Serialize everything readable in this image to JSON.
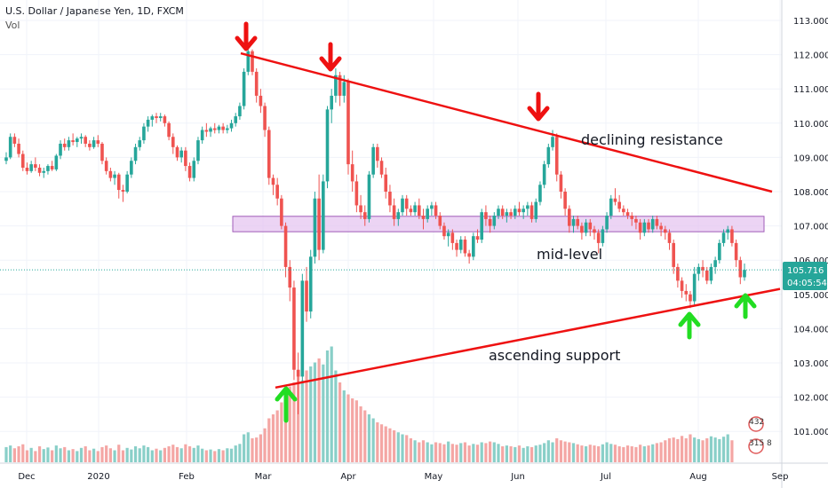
{
  "header": {
    "symbol": "U.S. Dollar / Japanese Yen, 1D, FXCM",
    "indicator": "Vol"
  },
  "colors": {
    "up": "#26a69a",
    "down": "#ef5350",
    "vol_up": "#89cfc8",
    "vol_down": "#f4a6a4",
    "trend": "#ee1111",
    "zone_fill": "#e6c6f0",
    "zone_stroke": "#a05cb8",
    "arrow_red": "#ee1111",
    "arrow_green": "#22dd22",
    "price_tag": "#26a69a",
    "grid": "#f0f3fa",
    "axis": "#d1d4dc"
  },
  "price_tag": {
    "value": "105.716",
    "countdown": "04:05:54"
  },
  "watermark": {
    "line1": "432",
    "line2": "315 8"
  },
  "annotations": {
    "resistance": "declining resistance",
    "midlevel": "mid-level",
    "support": "ascending support"
  },
  "chart_data": {
    "type": "candlestick",
    "y_ticks": [
      "101.000",
      "102.000",
      "103.000",
      "104.000",
      "105.000",
      "106.000",
      "107.000",
      "108.000",
      "109.000",
      "110.000",
      "111.000",
      "112.000",
      "113.000"
    ],
    "x_ticks": [
      "Dec",
      "2020",
      "Feb",
      "Mar",
      "Apr",
      "May",
      "Jun",
      "Jul",
      "Aug",
      "Sep"
    ],
    "ylim": [
      100.05,
      113.4
    ],
    "last_price": 105.716,
    "mid_zone": [
      106.83,
      107.28
    ],
    "resistance_line": {
      "from": {
        "date": "Feb 20",
        "price": 112.04
      },
      "to": {
        "date": "Sep 7",
        "price": 108.0
      }
    },
    "support_line": {
      "from": {
        "date": "Mar 9",
        "price": 102.28
      },
      "to": {
        "date": "Sep 3",
        "price": 105.16
      }
    },
    "candles": [
      [
        108.9,
        109.15,
        108.8,
        109.0
      ],
      [
        109.0,
        109.7,
        108.95,
        109.6
      ],
      [
        109.6,
        109.7,
        109.3,
        109.4
      ],
      [
        109.4,
        109.55,
        109.0,
        109.1
      ],
      [
        109.1,
        109.2,
        108.6,
        108.7
      ],
      [
        108.7,
        108.85,
        108.5,
        108.6
      ],
      [
        108.6,
        108.9,
        108.55,
        108.8
      ],
      [
        108.8,
        109.0,
        108.6,
        108.7
      ],
      [
        108.7,
        108.8,
        108.45,
        108.55
      ],
      [
        108.55,
        108.7,
        108.4,
        108.6
      ],
      [
        108.6,
        108.8,
        108.5,
        108.75
      ],
      [
        108.75,
        108.9,
        108.6,
        108.65
      ],
      [
        108.65,
        109.1,
        108.6,
        109.05
      ],
      [
        109.05,
        109.5,
        108.95,
        109.4
      ],
      [
        109.4,
        109.55,
        109.2,
        109.3
      ],
      [
        109.3,
        109.6,
        109.2,
        109.5
      ],
      [
        109.5,
        109.7,
        109.35,
        109.45
      ],
      [
        109.45,
        109.6,
        109.3,
        109.55
      ],
      [
        109.55,
        109.7,
        109.4,
        109.6
      ],
      [
        109.6,
        109.65,
        109.3,
        109.4
      ],
      [
        109.4,
        109.5,
        109.2,
        109.3
      ],
      [
        109.3,
        109.6,
        109.25,
        109.5
      ],
      [
        109.5,
        109.65,
        109.3,
        109.4
      ],
      [
        109.4,
        109.45,
        108.8,
        108.9
      ],
      [
        108.9,
        109.0,
        108.5,
        108.6
      ],
      [
        108.6,
        108.7,
        108.3,
        108.4
      ],
      [
        108.4,
        108.6,
        108.2,
        108.5
      ],
      [
        108.5,
        108.55,
        107.8,
        108.05
      ],
      [
        108.05,
        108.2,
        107.7,
        108.0
      ],
      [
        108.0,
        108.6,
        107.95,
        108.5
      ],
      [
        108.5,
        109.0,
        108.4,
        108.9
      ],
      [
        108.9,
        109.4,
        108.8,
        109.3
      ],
      [
        109.3,
        109.6,
        109.2,
        109.5
      ],
      [
        109.5,
        110.0,
        109.4,
        109.9
      ],
      [
        109.9,
        110.2,
        109.75,
        110.1
      ],
      [
        110.1,
        110.25,
        109.9,
        110.2
      ],
      [
        110.2,
        110.3,
        110.0,
        110.15
      ],
      [
        110.15,
        110.3,
        110.05,
        110.2
      ],
      [
        110.2,
        110.25,
        109.9,
        110.0
      ],
      [
        110.0,
        110.05,
        109.5,
        109.6
      ],
      [
        109.6,
        109.7,
        109.1,
        109.3
      ],
      [
        109.3,
        109.35,
        108.9,
        109.0
      ],
      [
        109.0,
        109.3,
        108.85,
        109.2
      ],
      [
        109.2,
        109.3,
        108.6,
        108.75
      ],
      [
        108.75,
        108.85,
        108.3,
        108.4
      ],
      [
        108.4,
        109.0,
        108.3,
        108.9
      ],
      [
        108.9,
        109.6,
        108.8,
        109.5
      ],
      [
        109.5,
        109.9,
        109.4,
        109.8
      ],
      [
        109.8,
        110.0,
        109.6,
        109.75
      ],
      [
        109.75,
        109.9,
        109.6,
        109.85
      ],
      [
        109.85,
        110.0,
        109.7,
        109.8
      ],
      [
        109.8,
        109.95,
        109.7,
        109.9
      ],
      [
        109.9,
        110.0,
        109.7,
        109.8
      ],
      [
        109.8,
        109.95,
        109.7,
        109.85
      ],
      [
        109.85,
        110.1,
        109.75,
        110.0
      ],
      [
        110.0,
        110.3,
        109.9,
        110.2
      ],
      [
        110.2,
        110.6,
        110.1,
        110.5
      ],
      [
        110.5,
        111.6,
        110.4,
        111.5
      ],
      [
        111.5,
        112.2,
        111.4,
        112.1
      ],
      [
        112.1,
        112.15,
        111.4,
        111.5
      ],
      [
        111.5,
        111.6,
        110.6,
        110.8
      ],
      [
        110.8,
        111.0,
        110.3,
        110.5
      ],
      [
        110.5,
        110.6,
        109.6,
        109.8
      ],
      [
        109.8,
        109.9,
        108.2,
        108.4
      ],
      [
        108.4,
        108.5,
        107.9,
        108.2
      ],
      [
        108.2,
        108.4,
        107.6,
        107.8
      ],
      [
        107.8,
        107.9,
        106.9,
        107.0
      ],
      [
        107.0,
        107.1,
        105.5,
        105.8
      ],
      [
        105.8,
        106.0,
        104.8,
        105.2
      ],
      [
        105.2,
        105.4,
        102.5,
        102.8
      ],
      [
        102.8,
        103.3,
        101.5,
        102.6
      ],
      [
        102.6,
        105.6,
        102.4,
        105.4
      ],
      [
        105.4,
        105.8,
        104.2,
        104.5
      ],
      [
        104.5,
        106.3,
        104.3,
        106.1
      ],
      [
        106.1,
        108.0,
        105.9,
        107.8
      ],
      [
        107.8,
        108.5,
        106.0,
        106.3
      ],
      [
        106.3,
        108.5,
        106.2,
        108.3
      ],
      [
        108.3,
        110.5,
        108.1,
        110.4
      ],
      [
        110.4,
        111.0,
        110.0,
        110.8
      ],
      [
        110.8,
        111.6,
        110.6,
        111.4
      ],
      [
        111.4,
        111.5,
        110.5,
        110.8
      ],
      [
        110.8,
        111.4,
        110.6,
        111.2
      ],
      [
        111.2,
        111.3,
        108.5,
        108.8
      ],
      [
        108.8,
        109.2,
        108.0,
        108.3
      ],
      [
        108.3,
        108.5,
        107.4,
        107.6
      ],
      [
        107.6,
        107.9,
        107.2,
        107.4
      ],
      [
        107.4,
        107.6,
        107.0,
        107.2
      ],
      [
        107.2,
        108.6,
        107.1,
        108.5
      ],
      [
        108.5,
        109.4,
        108.4,
        109.3
      ],
      [
        109.3,
        109.4,
        108.7,
        108.9
      ],
      [
        108.9,
        109.0,
        108.4,
        108.5
      ],
      [
        108.5,
        108.7,
        107.8,
        108.0
      ],
      [
        108.0,
        108.2,
        107.4,
        107.6
      ],
      [
        107.6,
        107.8,
        107.0,
        107.2
      ],
      [
        107.2,
        107.5,
        107.0,
        107.4
      ],
      [
        107.4,
        107.9,
        107.3,
        107.8
      ],
      [
        107.8,
        107.9,
        107.3,
        107.5
      ],
      [
        107.5,
        107.6,
        107.3,
        107.4
      ],
      [
        107.4,
        107.7,
        107.3,
        107.6
      ],
      [
        107.6,
        107.8,
        107.2,
        107.3
      ],
      [
        107.3,
        107.5,
        106.9,
        107.2
      ],
      [
        107.2,
        107.6,
        107.1,
        107.5
      ],
      [
        107.5,
        107.7,
        107.3,
        107.6
      ],
      [
        107.6,
        107.7,
        107.2,
        107.3
      ],
      [
        107.3,
        107.4,
        106.9,
        107.0
      ],
      [
        107.0,
        107.1,
        106.6,
        106.7
      ],
      [
        106.7,
        106.9,
        106.4,
        106.8
      ],
      [
        106.8,
        106.9,
        106.3,
        106.5
      ],
      [
        106.5,
        106.6,
        106.1,
        106.3
      ],
      [
        106.3,
        106.7,
        106.2,
        106.6
      ],
      [
        106.6,
        106.7,
        106.1,
        106.2
      ],
      [
        106.2,
        106.3,
        105.9,
        106.1
      ],
      [
        106.1,
        106.8,
        106.0,
        106.7
      ],
      [
        106.7,
        106.9,
        106.5,
        106.6
      ],
      [
        106.6,
        107.5,
        106.5,
        107.4
      ],
      [
        107.4,
        107.6,
        107.0,
        107.2
      ],
      [
        107.2,
        107.3,
        106.8,
        107.0
      ],
      [
        107.0,
        107.4,
        106.9,
        107.3
      ],
      [
        107.3,
        107.6,
        107.2,
        107.5
      ],
      [
        107.5,
        107.6,
        107.2,
        107.3
      ],
      [
        107.3,
        107.5,
        107.1,
        107.4
      ],
      [
        107.4,
        107.5,
        107.2,
        107.3
      ],
      [
        107.3,
        107.6,
        107.2,
        107.5
      ],
      [
        107.5,
        107.7,
        107.3,
        107.4
      ],
      [
        107.4,
        107.6,
        107.2,
        107.5
      ],
      [
        107.5,
        107.7,
        107.3,
        107.6
      ],
      [
        107.6,
        107.7,
        107.1,
        107.2
      ],
      [
        107.2,
        107.8,
        107.1,
        107.7
      ],
      [
        107.7,
        108.3,
        107.6,
        108.2
      ],
      [
        108.2,
        108.9,
        108.1,
        108.8
      ],
      [
        108.8,
        109.4,
        108.7,
        109.3
      ],
      [
        109.3,
        109.8,
        109.2,
        109.6
      ],
      [
        109.6,
        109.7,
        108.3,
        108.5
      ],
      [
        108.5,
        108.6,
        107.8,
        108.0
      ],
      [
        108.0,
        108.1,
        107.3,
        107.5
      ],
      [
        107.5,
        107.6,
        106.8,
        107.0
      ],
      [
        107.0,
        107.3,
        106.8,
        107.2
      ],
      [
        107.2,
        107.3,
        106.9,
        107.0
      ],
      [
        107.0,
        107.1,
        106.6,
        106.8
      ],
      [
        106.8,
        107.2,
        106.7,
        107.1
      ],
      [
        107.1,
        107.2,
        106.7,
        106.9
      ],
      [
        106.9,
        107.0,
        106.6,
        106.8
      ],
      [
        106.8,
        106.9,
        106.2,
        106.5
      ],
      [
        106.5,
        107.0,
        106.4,
        106.9
      ],
      [
        106.9,
        107.4,
        106.8,
        107.3
      ],
      [
        107.3,
        107.9,
        107.2,
        107.8
      ],
      [
        107.8,
        108.1,
        107.6,
        107.7
      ],
      [
        107.7,
        107.9,
        107.4,
        107.5
      ],
      [
        107.5,
        107.6,
        107.3,
        107.4
      ],
      [
        107.4,
        107.5,
        107.2,
        107.3
      ],
      [
        107.3,
        107.4,
        107.0,
        107.2
      ],
      [
        107.2,
        107.3,
        106.9,
        107.1
      ],
      [
        107.1,
        107.2,
        106.6,
        106.8
      ],
      [
        106.8,
        107.2,
        106.7,
        107.1
      ],
      [
        107.1,
        107.2,
        106.8,
        106.9
      ],
      [
        106.9,
        107.3,
        106.8,
        107.2
      ],
      [
        107.2,
        107.3,
        106.9,
        107.0
      ],
      [
        107.0,
        107.1,
        106.7,
        106.9
      ],
      [
        106.9,
        107.0,
        106.6,
        106.8
      ],
      [
        106.8,
        106.9,
        106.3,
        106.5
      ],
      [
        106.5,
        106.6,
        105.6,
        105.8
      ],
      [
        105.8,
        105.9,
        105.2,
        105.4
      ],
      [
        105.4,
        105.5,
        104.9,
        105.1
      ],
      [
        105.1,
        105.3,
        104.8,
        105.0
      ],
      [
        105.0,
        105.1,
        104.6,
        104.8
      ],
      [
        104.8,
        105.8,
        104.7,
        105.6
      ],
      [
        105.6,
        105.9,
        105.4,
        105.8
      ],
      [
        105.8,
        106.0,
        105.5,
        105.7
      ],
      [
        105.7,
        105.8,
        105.3,
        105.4
      ],
      [
        105.4,
        105.9,
        105.3,
        105.8
      ],
      [
        105.8,
        106.1,
        105.6,
        106.0
      ],
      [
        106.0,
        106.6,
        105.9,
        106.5
      ],
      [
        106.5,
        106.9,
        106.4,
        106.8
      ],
      [
        106.8,
        107.0,
        106.6,
        106.9
      ],
      [
        106.9,
        107.0,
        106.4,
        106.5
      ],
      [
        106.5,
        106.6,
        105.8,
        106.0
      ],
      [
        106.0,
        106.1,
        105.3,
        105.5
      ],
      [
        105.5,
        105.9,
        105.4,
        105.716
      ]
    ],
    "volumes": [
      0.38,
      0.42,
      0.35,
      0.4,
      0.45,
      0.3,
      0.36,
      0.28,
      0.4,
      0.33,
      0.37,
      0.3,
      0.42,
      0.35,
      0.38,
      0.3,
      0.33,
      0.28,
      0.36,
      0.4,
      0.3,
      0.34,
      0.28,
      0.38,
      0.42,
      0.35,
      0.3,
      0.44,
      0.3,
      0.36,
      0.32,
      0.4,
      0.35,
      0.42,
      0.38,
      0.3,
      0.34,
      0.3,
      0.36,
      0.4,
      0.44,
      0.38,
      0.35,
      0.45,
      0.4,
      0.36,
      0.42,
      0.34,
      0.3,
      0.32,
      0.28,
      0.33,
      0.3,
      0.35,
      0.34,
      0.42,
      0.46,
      0.7,
      0.75,
      0.6,
      0.62,
      0.7,
      0.85,
      1.1,
      1.2,
      1.3,
      1.5,
      1.7,
      1.9,
      2.0,
      2.2,
      2.05,
      2.3,
      2.4,
      2.5,
      2.6,
      2.45,
      2.8,
      2.9,
      2.3,
      2.0,
      1.8,
      1.7,
      1.6,
      1.55,
      1.4,
      1.3,
      1.2,
      1.1,
      1.0,
      0.95,
      0.9,
      0.85,
      0.8,
      0.75,
      0.7,
      0.68,
      0.6,
      0.55,
      0.5,
      0.55,
      0.5,
      0.45,
      0.5,
      0.48,
      0.45,
      0.52,
      0.46,
      0.44,
      0.48,
      0.5,
      0.42,
      0.46,
      0.44,
      0.5,
      0.48,
      0.52,
      0.5,
      0.46,
      0.4,
      0.42,
      0.4,
      0.38,
      0.42,
      0.36,
      0.4,
      0.38,
      0.42,
      0.44,
      0.48,
      0.55,
      0.5,
      0.6,
      0.55,
      0.52,
      0.5,
      0.48,
      0.45,
      0.42,
      0.4,
      0.44,
      0.42,
      0.4,
      0.45,
      0.5,
      0.46,
      0.44,
      0.4,
      0.38,
      0.42,
      0.4,
      0.38,
      0.44,
      0.4,
      0.42,
      0.45,
      0.48,
      0.5,
      0.55,
      0.6,
      0.62,
      0.58,
      0.66,
      0.6,
      0.7,
      0.62,
      0.58,
      0.55,
      0.6,
      0.65,
      0.62,
      0.58,
      0.64,
      0.7,
      0.55
    ]
  }
}
